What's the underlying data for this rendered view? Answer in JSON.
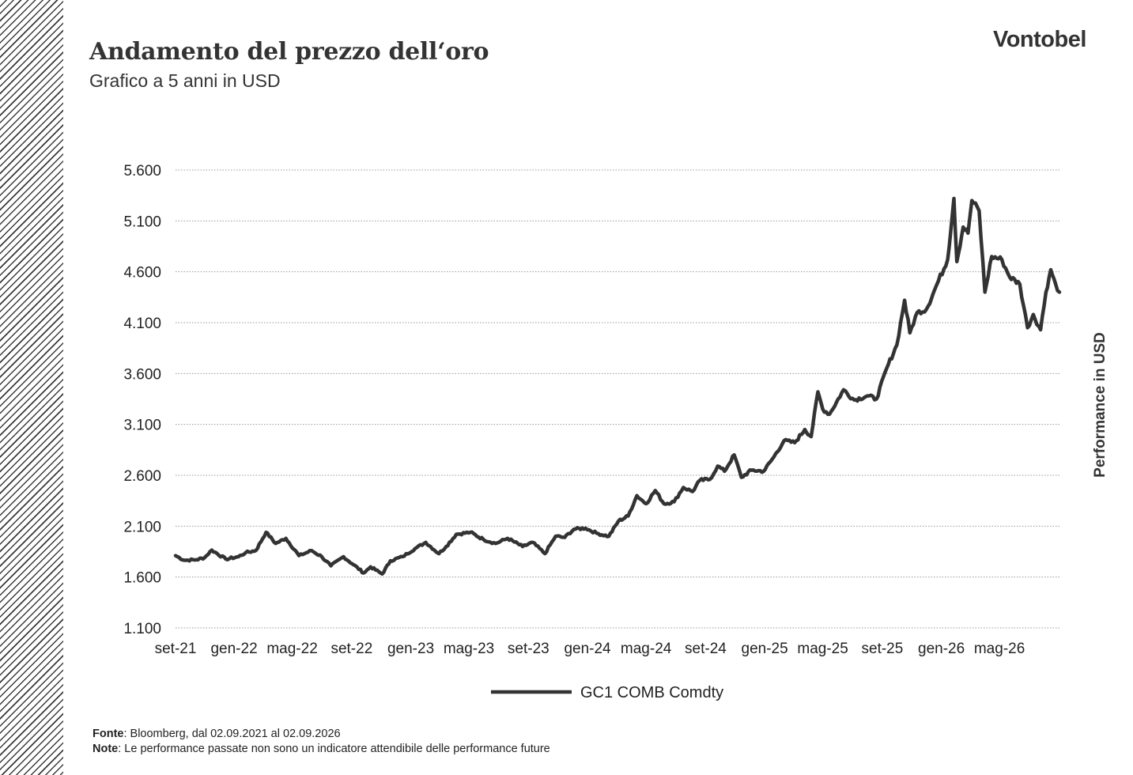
{
  "header": {
    "title": "Andamento del prezzo dell‘oro",
    "subtitle": "Grafico a 5 anni in USD",
    "logo": "Vontobel"
  },
  "footer": {
    "source_label": "Fonte",
    "source_text": ": Bloomberg, dal 02.09.2021 al 02.09.2026",
    "note_label": "Note",
    "note_text": ": Le performance passate non sono un indicatore attendibile delle performance future"
  },
  "colors": {
    "line": "#333333",
    "grid": "#999999",
    "text": "#333333"
  },
  "chart_data": {
    "type": "line",
    "ylabel": "Performance in USD",
    "ylim": [
      1100,
      5600
    ],
    "y_ticks": [
      "1.100",
      "1.600",
      "2.100",
      "2.600",
      "3.100",
      "3.600",
      "4.100",
      "4.600",
      "5.100",
      "5.600"
    ],
    "y_tick_values": [
      1100,
      1600,
      2100,
      2600,
      3100,
      3600,
      4100,
      4600,
      5100,
      5600
    ],
    "x_range": [
      "2021-09-02",
      "2026-09-02"
    ],
    "x_ticks": [
      {
        "label": "set-21",
        "date": "2021-09-01"
      },
      {
        "label": "gen-22",
        "date": "2022-01-01"
      },
      {
        "label": "mag-22",
        "date": "2022-05-01"
      },
      {
        "label": "set-22",
        "date": "2022-09-01"
      },
      {
        "label": "gen-23",
        "date": "2023-01-01"
      },
      {
        "label": "mag-23",
        "date": "2023-05-01"
      },
      {
        "label": "set-23",
        "date": "2023-09-01"
      },
      {
        "label": "gen-24",
        "date": "2024-01-01"
      },
      {
        "label": "mag-24",
        "date": "2024-05-01"
      },
      {
        "label": "set-24",
        "date": "2024-09-01"
      },
      {
        "label": "gen-25",
        "date": "2025-01-01"
      },
      {
        "label": "mag-25",
        "date": "2025-05-01"
      },
      {
        "label": "set-25",
        "date": "2025-09-01"
      },
      {
        "label": "gen-26",
        "date": "2026-01-01"
      },
      {
        "label": "mag-26",
        "date": "2026-05-01"
      }
    ],
    "grid": true,
    "legend": "bottom-center",
    "series": [
      {
        "name": "GC1 COMB Comdty",
        "points": [
          [
            "2021-09-02",
            1810
          ],
          [
            "2021-09-20",
            1765
          ],
          [
            "2021-10-15",
            1770
          ],
          [
            "2021-11-01",
            1790
          ],
          [
            "2021-11-16",
            1865
          ],
          [
            "2021-12-15",
            1775
          ],
          [
            "2022-01-10",
            1800
          ],
          [
            "2022-01-25",
            1840
          ],
          [
            "2022-02-15",
            1860
          ],
          [
            "2022-03-08",
            2040
          ],
          [
            "2022-03-28",
            1930
          ],
          [
            "2022-04-18",
            1980
          ],
          [
            "2022-05-15",
            1810
          ],
          [
            "2022-06-10",
            1860
          ],
          [
            "2022-07-01",
            1800
          ],
          [
            "2022-07-20",
            1710
          ],
          [
            "2022-08-15",
            1800
          ],
          [
            "2022-09-05",
            1720
          ],
          [
            "2022-09-26",
            1640
          ],
          [
            "2022-10-10",
            1700
          ],
          [
            "2022-11-03",
            1630
          ],
          [
            "2022-11-20",
            1760
          ],
          [
            "2022-12-15",
            1800
          ],
          [
            "2023-01-10",
            1880
          ],
          [
            "2023-02-01",
            1940
          ],
          [
            "2023-02-28",
            1830
          ],
          [
            "2023-03-15",
            1900
          ],
          [
            "2023-04-05",
            2020
          ],
          [
            "2023-05-04",
            2040
          ],
          [
            "2023-05-31",
            1970
          ],
          [
            "2023-06-25",
            1930
          ],
          [
            "2023-07-20",
            1980
          ],
          [
            "2023-08-20",
            1900
          ],
          [
            "2023-09-10",
            1940
          ],
          [
            "2023-10-05",
            1830
          ],
          [
            "2023-10-27",
            2000
          ],
          [
            "2023-11-15",
            1990
          ],
          [
            "2023-12-04",
            2070
          ],
          [
            "2023-12-28",
            2080
          ],
          [
            "2024-01-20",
            2030
          ],
          [
            "2024-02-14",
            2000
          ],
          [
            "2024-03-05",
            2150
          ],
          [
            "2024-03-25",
            2200
          ],
          [
            "2024-04-12",
            2400
          ],
          [
            "2024-05-01",
            2320
          ],
          [
            "2024-05-20",
            2450
          ],
          [
            "2024-06-07",
            2320
          ],
          [
            "2024-06-28",
            2340
          ],
          [
            "2024-07-17",
            2480
          ],
          [
            "2024-08-05",
            2440
          ],
          [
            "2024-08-20",
            2550
          ],
          [
            "2024-09-10",
            2560
          ],
          [
            "2024-09-26",
            2690
          ],
          [
            "2024-10-10",
            2640
          ],
          [
            "2024-10-30",
            2800
          ],
          [
            "2024-11-14",
            2580
          ],
          [
            "2024-12-05",
            2650
          ],
          [
            "2024-12-30",
            2640
          ],
          [
            "2025-01-20",
            2780
          ],
          [
            "2025-02-10",
            2940
          ],
          [
            "2025-03-04",
            2920
          ],
          [
            "2025-03-25",
            3050
          ],
          [
            "2025-04-07",
            2980
          ],
          [
            "2025-04-21",
            3420
          ],
          [
            "2025-05-01",
            3250
          ],
          [
            "2025-05-15",
            3200
          ],
          [
            "2025-06-13",
            3440
          ],
          [
            "2025-07-05",
            3340
          ],
          [
            "2025-08-01",
            3380
          ],
          [
            "2025-08-20",
            3350
          ],
          [
            "2025-09-10",
            3650
          ],
          [
            "2025-10-01",
            3880
          ],
          [
            "2025-10-17",
            4320
          ],
          [
            "2025-10-28",
            4000
          ],
          [
            "2025-11-12",
            4200
          ],
          [
            "2025-12-01",
            4230
          ],
          [
            "2025-12-26",
            4510
          ],
          [
            "2026-01-14",
            4720
          ],
          [
            "2026-01-27",
            5320
          ],
          [
            "2026-02-02",
            4700
          ],
          [
            "2026-02-15",
            5040
          ],
          [
            "2026-02-25",
            4980
          ],
          [
            "2026-03-05",
            5300
          ],
          [
            "2026-03-20",
            5200
          ],
          [
            "2026-04-01",
            4400
          ],
          [
            "2026-04-15",
            4750
          ],
          [
            "2026-05-06",
            4720
          ],
          [
            "2026-05-22",
            4550
          ],
          [
            "2026-06-12",
            4480
          ],
          [
            "2026-06-28",
            4050
          ],
          [
            "2026-07-10",
            4180
          ],
          [
            "2026-07-25",
            4030
          ],
          [
            "2026-08-05",
            4400
          ],
          [
            "2026-08-15",
            4620
          ],
          [
            "2026-08-25",
            4480
          ],
          [
            "2026-09-02",
            4400
          ]
        ]
      }
    ]
  }
}
